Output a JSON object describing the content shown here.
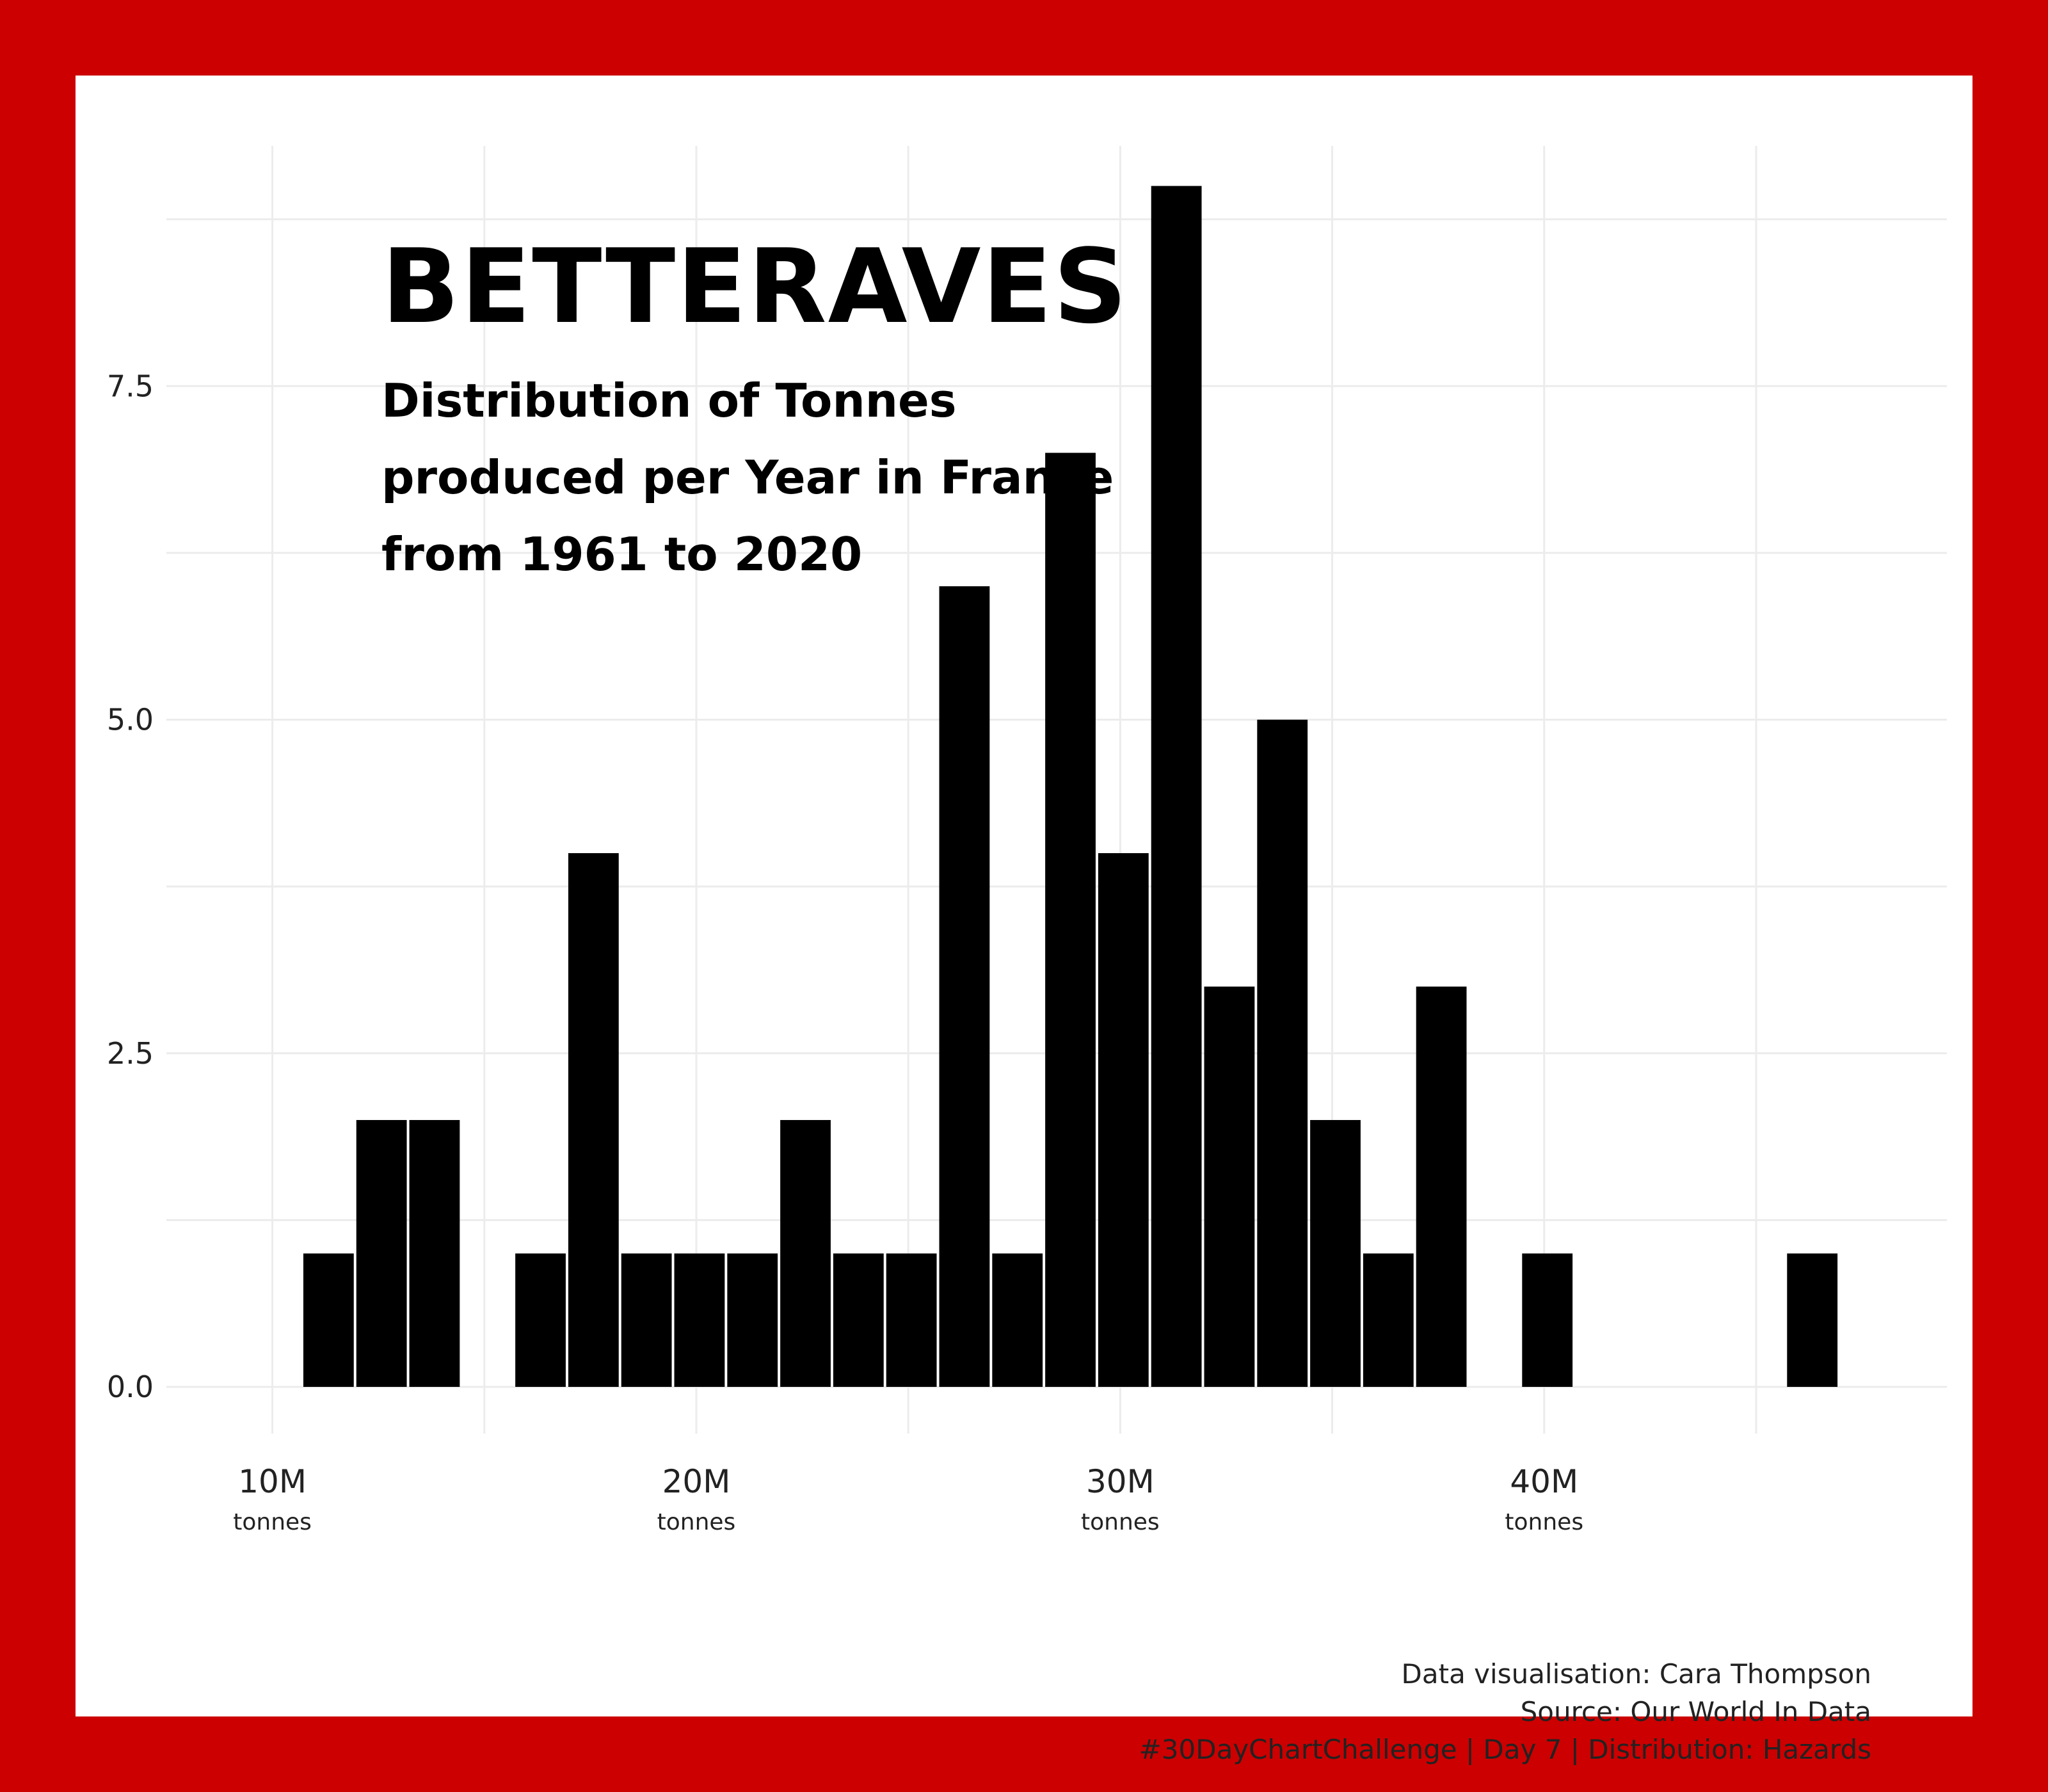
{
  "chart_data": {
    "type": "bar",
    "title": "BETTERAVES",
    "subtitle_lines": [
      "Distribution of Tonnes",
      "produced per Year in France",
      "from 1961 to 2020"
    ],
    "xlabel": "",
    "ylabel": "",
    "x_axis_unit": "tonnes",
    "xlim": [
      7.5,
      49.5
    ],
    "ylim": [
      -0.35,
      9.3
    ],
    "bin_width_millions": 1.25,
    "x_ticks": [
      {
        "value": 10,
        "label": "10M"
      },
      {
        "value": 20,
        "label": "20M"
      },
      {
        "value": 30,
        "label": "30M"
      },
      {
        "value": 40,
        "label": "40M"
      }
    ],
    "y_ticks": [
      {
        "value": 0,
        "label": "0.0"
      },
      {
        "value": 2.5,
        "label": "2.5"
      },
      {
        "value": 5,
        "label": "5.0"
      },
      {
        "value": 7.5,
        "label": "7.5"
      }
    ],
    "bins": [
      {
        "x_start": 10.7,
        "x_end": 11.95,
        "count": 1
      },
      {
        "x_start": 11.95,
        "x_end": 13.2,
        "count": 2
      },
      {
        "x_start": 13.2,
        "x_end": 14.45,
        "count": 2
      },
      {
        "x_start": 15.7,
        "x_end": 16.95,
        "count": 1
      },
      {
        "x_start": 16.95,
        "x_end": 18.2,
        "count": 4
      },
      {
        "x_start": 18.2,
        "x_end": 19.45,
        "count": 1
      },
      {
        "x_start": 19.45,
        "x_end": 20.7,
        "count": 1
      },
      {
        "x_start": 20.7,
        "x_end": 21.95,
        "count": 1
      },
      {
        "x_start": 21.95,
        "x_end": 23.2,
        "count": 2
      },
      {
        "x_start": 23.2,
        "x_end": 24.45,
        "count": 1
      },
      {
        "x_start": 24.45,
        "x_end": 25.7,
        "count": 1
      },
      {
        "x_start": 25.7,
        "x_end": 26.95,
        "count": 6
      },
      {
        "x_start": 26.95,
        "x_end": 28.2,
        "count": 1
      },
      {
        "x_start": 28.2,
        "x_end": 29.45,
        "count": 7
      },
      {
        "x_start": 29.45,
        "x_end": 30.7,
        "count": 4
      },
      {
        "x_start": 30.7,
        "x_end": 31.95,
        "count": 9
      },
      {
        "x_start": 31.95,
        "x_end": 33.2,
        "count": 3
      },
      {
        "x_start": 33.2,
        "x_end": 34.45,
        "count": 5
      },
      {
        "x_start": 34.45,
        "x_end": 35.7,
        "count": 2
      },
      {
        "x_start": 35.7,
        "x_end": 36.95,
        "count": 1
      },
      {
        "x_start": 36.95,
        "x_end": 38.2,
        "count": 3
      },
      {
        "x_start": 39.45,
        "x_end": 40.7,
        "count": 1
      },
      {
        "x_start": 45.7,
        "x_end": 46.95,
        "count": 1
      }
    ],
    "bar_color": "#000000",
    "background": "#ffffff",
    "frame_color": "#cc0000",
    "grid": true,
    "legend": "none"
  },
  "caption": {
    "line1": "Data visualisation: Cara Thompson",
    "line2": "Source: Our World In Data",
    "line3": "#30DayChartChallenge | Day 7 | Distribution: Hazards"
  }
}
